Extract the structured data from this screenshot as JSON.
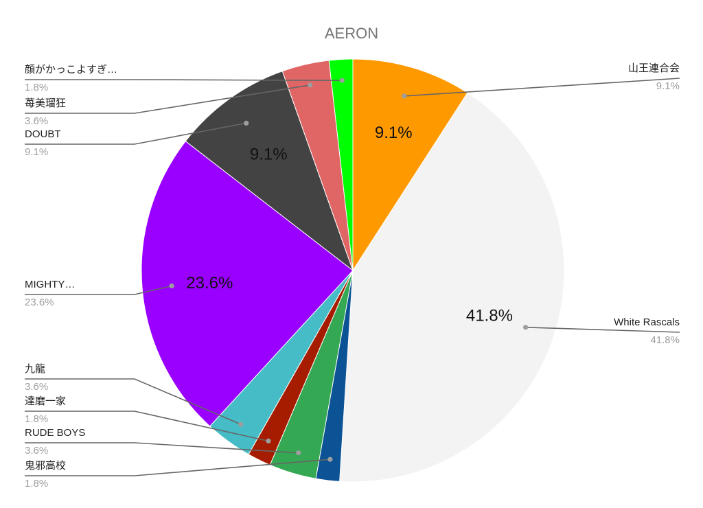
{
  "chart_data": {
    "type": "pie",
    "title": "AERON",
    "slices": [
      {
        "label": "山王連合会",
        "value": 9.1,
        "pct_text": "9.1%",
        "color": "#ff9900",
        "side": "right",
        "inside": true
      },
      {
        "label": "White Rascals",
        "value": 41.8,
        "pct_text": "41.8%",
        "color": "#f3f3f3",
        "side": "right",
        "inside": true
      },
      {
        "label": "鬼邪高校",
        "value": 1.8,
        "pct_text": "1.8%",
        "color": "#0b5394",
        "side": "left",
        "inside": false
      },
      {
        "label": "RUDE BOYS",
        "value": 3.6,
        "pct_text": "3.6%",
        "color": "#34a853",
        "side": "left",
        "inside": false
      },
      {
        "label": "達磨一家",
        "value": 1.8,
        "pct_text": "1.8%",
        "color": "#a61c00",
        "side": "left",
        "inside": false
      },
      {
        "label": "九龍",
        "value": 3.6,
        "pct_text": "3.6%",
        "color": "#46bdc6",
        "side": "left",
        "inside": false
      },
      {
        "label": "MIGHTY…",
        "value": 23.6,
        "pct_text": "23.6%",
        "color": "#9900ff",
        "side": "left",
        "inside": true
      },
      {
        "label": "DOUBT",
        "value": 9.1,
        "pct_text": "9.1%",
        "color": "#434343",
        "side": "left",
        "inside": true
      },
      {
        "label": "苺美瑠狂",
        "value": 3.6,
        "pct_text": "3.6%",
        "color": "#e06666",
        "side": "left",
        "inside": false
      },
      {
        "label": "顔がかっこよすぎ…",
        "value": 1.8,
        "pct_text": "1.8%",
        "color": "#00ff00",
        "side": "left",
        "inside": false
      }
    ],
    "legend": "leader-line labels"
  }
}
